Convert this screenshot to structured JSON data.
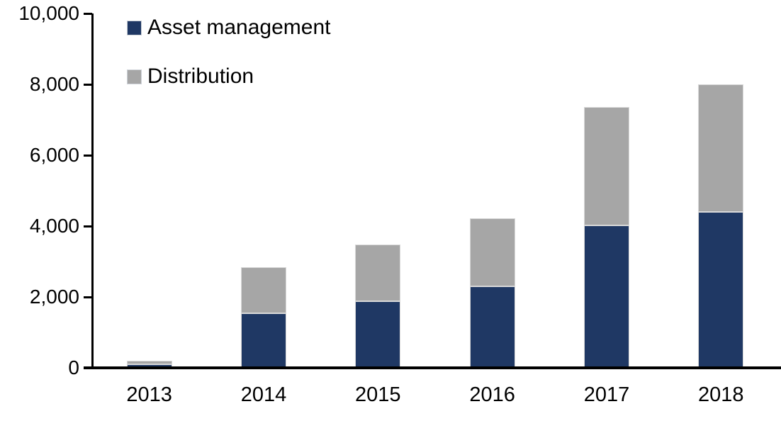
{
  "chart_data": {
    "type": "bar",
    "stacked": true,
    "title": "",
    "xlabel": "",
    "ylabel": "",
    "categories": [
      "2013",
      "2014",
      "2015",
      "2016",
      "2017",
      "2018"
    ],
    "series": [
      {
        "name": "Asset management",
        "color": "#1F3864",
        "values": [
          100,
          1540,
          1880,
          2310,
          4030,
          4410
        ]
      },
      {
        "name": "Distribution",
        "color": "#A6A6A6",
        "values": [
          100,
          1310,
          1600,
          1920,
          3340,
          3590
        ]
      }
    ],
    "totals": [
      200,
      2850,
      3480,
      4230,
      7370,
      8000
    ],
    "ylim": [
      0,
      10000
    ],
    "ytick_interval": 2000,
    "ytick_labels": [
      "0",
      "2,000",
      "4,000",
      "6,000",
      "8,000",
      "10,000"
    ],
    "grid": false,
    "legend_position": "top-left",
    "axis_color": "#000000",
    "bar_border_color": "#D9D9D9"
  }
}
